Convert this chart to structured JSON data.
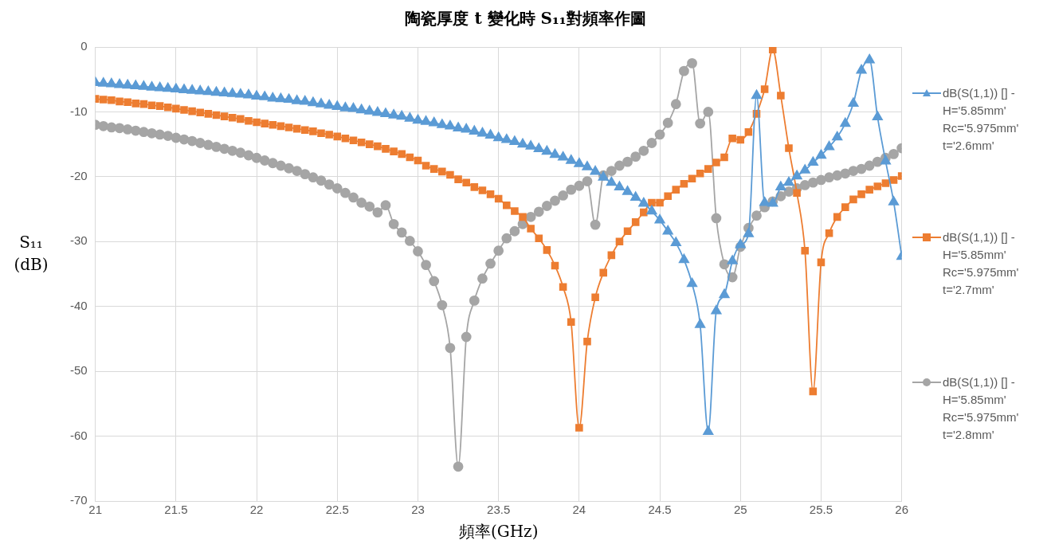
{
  "chart_data": {
    "type": "line",
    "title": "陶瓷厚度 t 變化時 S₁₁對頻率作圖",
    "xlabel": "頻率(GHz)",
    "ylabel": "S₁₁ (dB)",
    "x": [
      21,
      21.05,
      21.1,
      21.15,
      21.2,
      21.25,
      21.3,
      21.35,
      21.4,
      21.45,
      21.5,
      21.55,
      21.6,
      21.65,
      21.7,
      21.75,
      21.8,
      21.85,
      21.9,
      21.95,
      22,
      22.05,
      22.1,
      22.15,
      22.2,
      22.25,
      22.3,
      22.35,
      22.4,
      22.45,
      22.5,
      22.55,
      22.6,
      22.65,
      22.7,
      22.75,
      22.8,
      22.85,
      22.9,
      22.95,
      23,
      23.05,
      23.1,
      23.15,
      23.2,
      23.25,
      23.3,
      23.35,
      23.4,
      23.45,
      23.5,
      23.55,
      23.6,
      23.65,
      23.7,
      23.75,
      23.8,
      23.85,
      23.9,
      23.95,
      24,
      24.05,
      24.1,
      24.15,
      24.2,
      24.25,
      24.3,
      24.35,
      24.4,
      24.45,
      24.5,
      24.55,
      24.6,
      24.65,
      24.7,
      24.75,
      24.8,
      24.85,
      24.9,
      24.95,
      25,
      25.05,
      25.1,
      25.15,
      25.2,
      25.25,
      25.3,
      25.35,
      25.4,
      25.45,
      25.5,
      25.55,
      25.6,
      25.65,
      25.7,
      25.75,
      25.8,
      25.85,
      25.9,
      25.95,
      26
    ],
    "series": [
      {
        "name": "dB(S(1,1)) [] - H='5.85mm' Rc='5.975mm' t='2.6mm'",
        "color": "#5b9bd5",
        "marker": "triangle",
        "values": [
          -5.5,
          -5.6,
          -5.7,
          -5.8,
          -5.9,
          -6.0,
          -6.1,
          -6.2,
          -6.3,
          -6.4,
          -6.5,
          -6.6,
          -6.7,
          -6.8,
          -6.9,
          -7.0,
          -7.1,
          -7.2,
          -7.3,
          -7.4,
          -7.6,
          -7.7,
          -7.9,
          -8.0,
          -8.1,
          -8.3,
          -8.4,
          -8.6,
          -8.8,
          -9.0,
          -9.2,
          -9.4,
          -9.5,
          -9.7,
          -9.9,
          -10.1,
          -10.3,
          -10.5,
          -10.7,
          -11.0,
          -11.3,
          -11.5,
          -11.7,
          -12.0,
          -12.2,
          -12.5,
          -12.7,
          -13.0,
          -13.3,
          -13.6,
          -14.0,
          -14.3,
          -14.6,
          -15.0,
          -15.3,
          -15.7,
          -16.1,
          -16.6,
          -17.0,
          -17.5,
          -18.0,
          -18.5,
          -19.2,
          -20.1,
          -20.9,
          -21.6,
          -22.3,
          -23.2,
          -24.1,
          -25.3,
          -26.7,
          -28.4,
          -30.2,
          -32.8,
          -36.5,
          -42.8,
          -59.3,
          -40.7,
          -38.2,
          -33.0,
          -30.5,
          -28.8,
          -7.5,
          -24.0,
          -24.1,
          -21.6,
          -20.9,
          -19.9,
          -19.0,
          -17.8,
          -16.7,
          -15.4,
          -13.9,
          -11.8,
          -8.7,
          -3.6,
          -2.0,
          -10.8,
          -17.6,
          -23.9,
          -32.3
        ]
      },
      {
        "name": "dB(S(1,1)) [] - H='5.85mm' Rc='5.975mm' t='2.7mm'",
        "color": "#ed7d31",
        "marker": "square",
        "values": [
          -8.0,
          -8.1,
          -8.2,
          -8.4,
          -8.5,
          -8.7,
          -8.8,
          -9.0,
          -9.1,
          -9.3,
          -9.5,
          -9.7,
          -9.9,
          -10.1,
          -10.3,
          -10.5,
          -10.7,
          -10.9,
          -11.1,
          -11.4,
          -11.6,
          -11.8,
          -12.0,
          -12.2,
          -12.4,
          -12.6,
          -12.8,
          -13.0,
          -13.3,
          -13.5,
          -13.8,
          -14.1,
          -14.4,
          -14.7,
          -15.0,
          -15.3,
          -15.7,
          -16.1,
          -16.5,
          -17.0,
          -17.5,
          -18.3,
          -18.8,
          -19.2,
          -19.7,
          -20.4,
          -20.9,
          -21.6,
          -22.1,
          -22.7,
          -23.4,
          -24.4,
          -25.3,
          -26.2,
          -28.0,
          -29.5,
          -31.3,
          -33.7,
          -37.0,
          -42.4,
          -58.7,
          -45.4,
          -38.6,
          -34.8,
          -32.1,
          -30.0,
          -28.4,
          -27.0,
          -25.5,
          -24.0,
          -24.0,
          -23.0,
          -22.0,
          -21.1,
          -20.3,
          -19.5,
          -18.8,
          -17.8,
          -17.0,
          -14.1,
          -14.3,
          -13.1,
          -10.3,
          -6.5,
          -0.4,
          -7.5,
          -15.6,
          -22.5,
          -31.4,
          -53.1,
          -33.2,
          -28.7,
          -26.2,
          -24.7,
          -23.5,
          -22.7,
          -22.0,
          -21.5,
          -21.0,
          -20.5,
          -19.9
        ]
      },
      {
        "name": "dB(S(1,1)) [] - H='5.85mm' Rc='5.975mm' t='2.8mm'",
        "color": "#a5a5a5",
        "marker": "circle",
        "values": [
          -12.0,
          -12.2,
          -12.4,
          -12.5,
          -12.7,
          -12.9,
          -13.1,
          -13.3,
          -13.5,
          -13.7,
          -14.0,
          -14.25,
          -14.5,
          -14.8,
          -15.1,
          -15.4,
          -15.7,
          -16.0,
          -16.3,
          -16.7,
          -17.1,
          -17.5,
          -17.9,
          -18.3,
          -18.7,
          -19.1,
          -19.6,
          -20.1,
          -20.6,
          -21.2,
          -21.8,
          -22.5,
          -23.2,
          -24.0,
          -24.6,
          -25.5,
          -24.4,
          -27.3,
          -28.6,
          -29.9,
          -31.5,
          -33.6,
          -36.1,
          -39.8,
          -46.4,
          -64.7,
          -44.7,
          -39.1,
          -35.7,
          -33.4,
          -31.4,
          -29.5,
          -28.4,
          -27.3,
          -26.2,
          -25.4,
          -24.5,
          -23.7,
          -22.9,
          -22.0,
          -21.4,
          -20.7,
          -27.4,
          -19.8,
          -19.1,
          -18.3,
          -17.7,
          -16.9,
          -16.0,
          -14.8,
          -13.5,
          -11.7,
          -8.8,
          -3.7,
          -2.5,
          -11.8,
          -10.0,
          -26.4,
          -33.5,
          -35.5,
          -30.8,
          -27.9,
          -26.0,
          -24.7,
          -23.8,
          -23.0,
          -22.3,
          -21.8,
          -21.3,
          -20.9,
          -20.5,
          -20.1,
          -19.8,
          -19.5,
          -19.1,
          -18.8,
          -18.3,
          -17.7,
          -17.1,
          -16.5,
          -15.6
        ]
      }
    ],
    "xlim": [
      21,
      26
    ],
    "xticks": [
      21,
      21.5,
      22,
      22.5,
      23,
      23.5,
      24,
      24.5,
      25,
      25.5,
      26
    ],
    "ylim": [
      -70,
      0
    ],
    "yticks": [
      -70,
      -60,
      -50,
      -40,
      -30,
      -20,
      -10,
      0
    ],
    "grid": true,
    "legend": "right",
    "line_style": "solid"
  }
}
